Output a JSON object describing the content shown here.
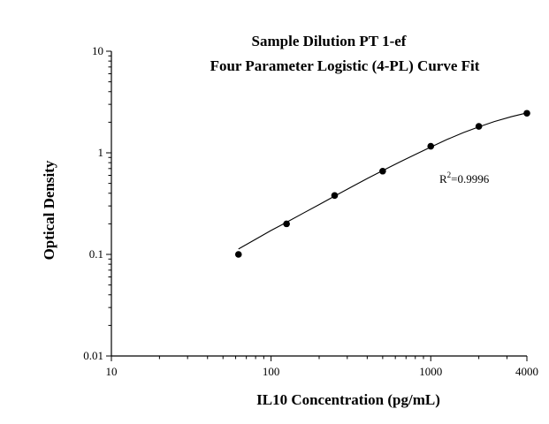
{
  "chart_data": {
    "type": "scatter",
    "title": "Sample Dilution PT 1-ef",
    "subtitle": "Four Parameter Logistic (4-PL) Curve Fit",
    "xlabel": "IL10 Concentration (pg/mL)",
    "ylabel": "Optical Density",
    "xscale": "log",
    "yscale": "log",
    "xlim": [
      10,
      4000
    ],
    "ylim": [
      0.01,
      10
    ],
    "x_tick_values": [
      10,
      100,
      1000,
      4000
    ],
    "x_tick_labels": [
      "10",
      "100",
      "1000",
      "4000"
    ],
    "y_tick_values": [
      0.01,
      0.1,
      1,
      10
    ],
    "y_tick_labels": [
      "0.01",
      "0.1",
      "1",
      "10"
    ],
    "grid": false,
    "legend": "none",
    "points": {
      "x": [
        62.5,
        125,
        250,
        500,
        1000,
        2000,
        4000
      ],
      "y": [
        0.1,
        0.2,
        0.38,
        0.66,
        1.16,
        1.82,
        2.45
      ]
    },
    "fit_curve": {
      "model": "4-PL",
      "x": [
        62.5,
        80,
        100,
        125,
        160,
        200,
        250,
        320,
        400,
        500,
        640,
        800,
        1000,
        1260,
        1600,
        2000,
        2500,
        3200,
        4000
      ],
      "y": [
        0.113,
        0.141,
        0.172,
        0.207,
        0.256,
        0.309,
        0.375,
        0.463,
        0.558,
        0.668,
        0.812,
        0.962,
        1.14,
        1.35,
        1.58,
        1.8,
        2.03,
        2.27,
        2.47
      ]
    },
    "annotation": {
      "base": "R",
      "superscript": "2",
      "text": "=0.9996"
    },
    "colors": {
      "marker": "#000000",
      "line": "#000000"
    }
  }
}
